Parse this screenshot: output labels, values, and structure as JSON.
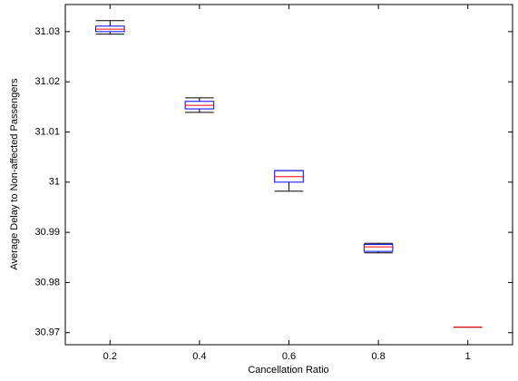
{
  "chart_data": {
    "type": "box",
    "x_label": "Cancellation Ratio",
    "y_label": "Average Delay to Non-affected Passengers",
    "categories": [
      "0.2",
      "0.4",
      "0.6",
      "0.8",
      "1"
    ],
    "min": [
      31.0295,
      31.0139,
      30.9982,
      30.9859,
      30.9711
    ],
    "q1": [
      31.03,
      31.0146,
      31.0,
      30.9862,
      30.9711
    ],
    "median": [
      31.0305,
      31.0153,
      31.0011,
      30.9871,
      30.9711
    ],
    "q3": [
      31.0311,
      31.0161,
      31.0023,
      30.9876,
      30.9711
    ],
    "max": [
      31.0322,
      31.0168,
      31.0023,
      30.9878,
      30.9711
    ],
    "box_color": "#0000ff",
    "median_color": "#ff0000",
    "whisker_color": "#000000",
    "ylim": [
      30.9676,
      31.0354
    ],
    "yticks": [
      30.97,
      30.98,
      30.99,
      31,
      31.01,
      31.02,
      31.03
    ]
  }
}
